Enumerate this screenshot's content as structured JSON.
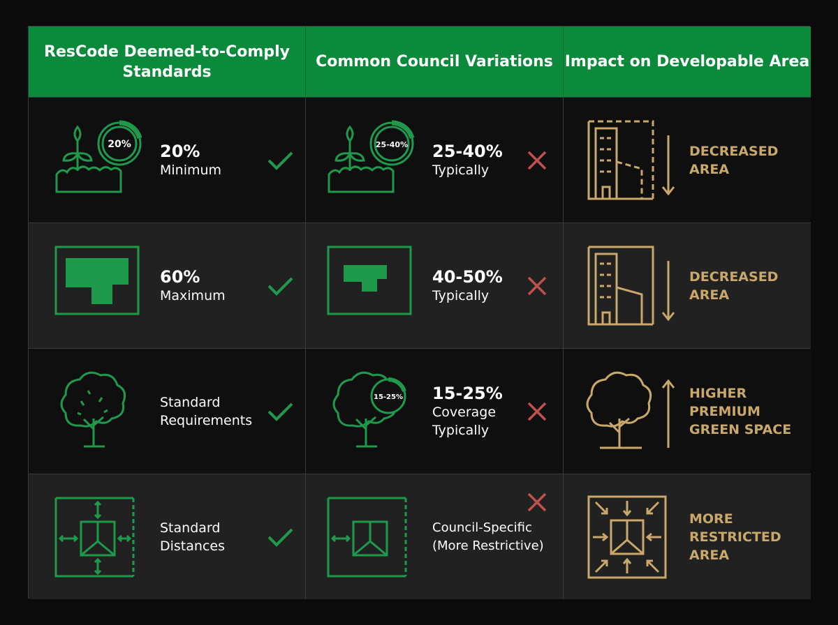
{
  "headers": [
    "ResCode Deemed-to-Comply Standards",
    "Common Council Variations",
    "Impact on Developable Area"
  ],
  "rows": [
    {
      "rescode": {
        "value": "20%",
        "label": "Minimum",
        "icon": "plant-progress-ring-icon",
        "ring_label": "20%",
        "status": "check"
      },
      "council": {
        "value": "25-40%",
        "label": "Typically",
        "icon": "plant-progress-ring-icon",
        "ring_label": "25-40%",
        "status": "cross"
      },
      "impact": {
        "lines": [
          "DECREASED",
          "AREA"
        ],
        "icon": "building-shrinking-area-icon",
        "direction": "down"
      }
    },
    {
      "rescode": {
        "value": "60%",
        "label": "Maximum",
        "icon": "site-coverage-icon",
        "status": "check"
      },
      "council": {
        "value": "40-50%",
        "label": "Typically",
        "icon": "site-coverage-icon",
        "status": "cross"
      },
      "impact": {
        "lines": [
          "DECREASED",
          "AREA"
        ],
        "icon": "building-area-icon",
        "direction": "down"
      }
    },
    {
      "rescode": {
        "label": "Standard Requirements",
        "icon": "tree-icon",
        "status": "check"
      },
      "council": {
        "value": "15-25%",
        "label": "Coverage Typically",
        "icon": "tree-canopy-ring-icon",
        "ring_label": "15-25%",
        "status": "cross"
      },
      "impact": {
        "lines": [
          "HIGHER",
          "PREMIUM",
          "GREEN SPACE"
        ],
        "icon": "tree-icon",
        "direction": "up"
      }
    },
    {
      "rescode": {
        "label": "Standard Distances",
        "icon": "setback-icon",
        "status": "check"
      },
      "council": {
        "label": "Council-Specific (More Restrictive)",
        "icon": "setback-icon",
        "status": "cross"
      },
      "impact": {
        "lines": [
          "MORE",
          "RESTRICTED",
          "AREA"
        ],
        "icon": "restricted-setback-icon",
        "direction": "inward"
      }
    }
  ],
  "colors": {
    "header": "#0b8a3c",
    "green": "#1f9a4c",
    "gold": "#c9a86a",
    "cross": "#c0504d",
    "text": "#ffffff"
  }
}
